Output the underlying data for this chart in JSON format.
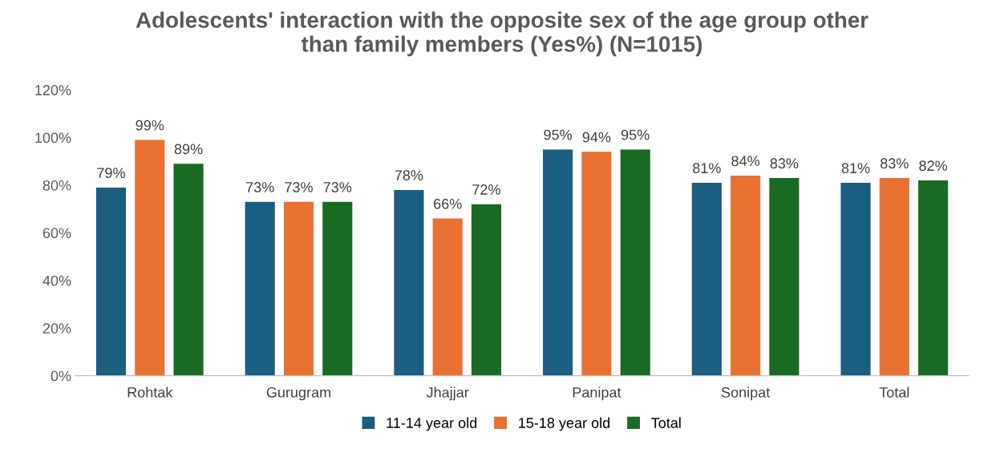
{
  "chart_data": {
    "type": "bar",
    "title": "Adolescents' interaction with the opposite sex of the age group other\nthan family members (Yes%) (N=1015)",
    "categories": [
      "Rohtak",
      "Gurugram",
      "Jhajjar",
      "Panipat",
      "Sonipat",
      "Total"
    ],
    "series": [
      {
        "name": "11-14 year old",
        "color": "#1a5e80",
        "values": [
          79,
          73,
          78,
          95,
          81,
          81
        ],
        "value_labels": [
          "79%",
          "73%",
          "78%",
          "95%",
          "81%",
          "81%"
        ]
      },
      {
        "name": "15-18 year old",
        "color": "#e97132",
        "values": [
          99,
          73,
          66,
          94,
          84,
          83
        ],
        "value_labels": [
          "99%",
          "73%",
          "66%",
          "94%",
          "84%",
          "83%"
        ]
      },
      {
        "name": "Total",
        "color": "#196b24",
        "values": [
          89,
          73,
          72,
          95,
          83,
          82
        ],
        "value_labels": [
          "89%",
          "73%",
          "72%",
          "95%",
          "83%",
          "82%"
        ]
      }
    ],
    "ylim": [
      0,
      120
    ],
    "yticks": [
      {
        "value": 0,
        "label": "0%"
      },
      {
        "value": 20,
        "label": "20%"
      },
      {
        "value": 40,
        "label": "40%"
      },
      {
        "value": 60,
        "label": "60%"
      },
      {
        "value": 80,
        "label": "80%"
      },
      {
        "value": 100,
        "label": "100%"
      },
      {
        "value": 120,
        "label": "120%"
      }
    ],
    "grid": false,
    "legend": "bottom"
  }
}
